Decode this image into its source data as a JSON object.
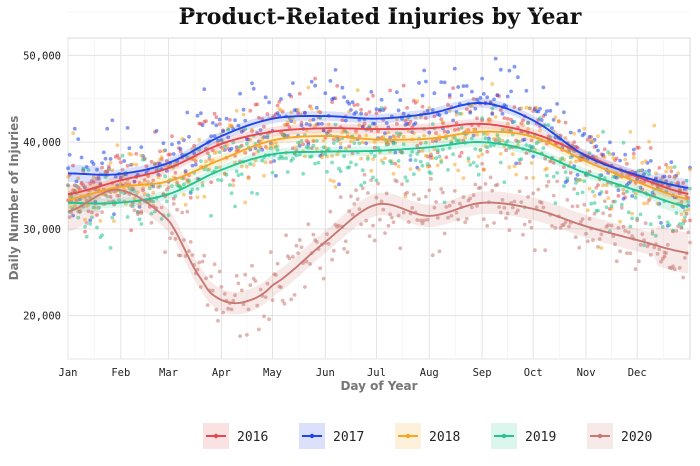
{
  "chart_data": {
    "type": "scatter",
    "title": "Product-Related Injuries by Year",
    "xlabel": "Day of Year",
    "ylabel": "Daily Number of Injuries",
    "x_ticks": [
      "Jan",
      "Feb",
      "Mar",
      "Apr",
      "May",
      "Jun",
      "Jul",
      "Aug",
      "Sep",
      "Oct",
      "Nov",
      "Dec"
    ],
    "x_tick_days": [
      1,
      32,
      60,
      91,
      121,
      152,
      182,
      213,
      244,
      274,
      305,
      335
    ],
    "xlim": [
      1,
      366
    ],
    "ylim": [
      15000,
      52000
    ],
    "y_ticks": [
      20000,
      30000,
      40000,
      50000
    ],
    "y_tick_labels": [
      "20,000",
      "30,000",
      "40,000",
      "50,000"
    ],
    "grid": true,
    "legend_position": "bottom",
    "series": [
      {
        "name": "2016",
        "color": "#e5484d",
        "smooth": [
          [
            1,
            34000
          ],
          [
            30,
            35500
          ],
          [
            60,
            37000
          ],
          [
            91,
            39800
          ],
          [
            121,
            41200
          ],
          [
            152,
            41600
          ],
          [
            182,
            41500
          ],
          [
            213,
            41600
          ],
          [
            244,
            42100
          ],
          [
            274,
            41000
          ],
          [
            305,
            38500
          ],
          [
            335,
            36000
          ],
          [
            366,
            34000
          ]
        ]
      },
      {
        "name": "2017",
        "color": "#2146e8",
        "smooth": [
          [
            1,
            36400
          ],
          [
            30,
            36300
          ],
          [
            60,
            37600
          ],
          [
            91,
            40700
          ],
          [
            121,
            42700
          ],
          [
            152,
            43000
          ],
          [
            182,
            42700
          ],
          [
            213,
            43300
          ],
          [
            244,
            44500
          ],
          [
            274,
            42500
          ],
          [
            305,
            38400
          ],
          [
            335,
            36200
          ],
          [
            366,
            34700
          ]
        ]
      },
      {
        "name": "2018",
        "color": "#f5a623",
        "smooth": [
          [
            1,
            33400
          ],
          [
            30,
            34800
          ],
          [
            60,
            35500
          ],
          [
            91,
            38000
          ],
          [
            121,
            40200
          ],
          [
            152,
            40700
          ],
          [
            182,
            40300
          ],
          [
            213,
            40400
          ],
          [
            244,
            41200
          ],
          [
            274,
            40600
          ],
          [
            305,
            37800
          ],
          [
            335,
            35400
          ],
          [
            366,
            33400
          ]
        ]
      },
      {
        "name": "2019",
        "color": "#23c48e",
        "smooth": [
          [
            1,
            33000
          ],
          [
            30,
            33000
          ],
          [
            60,
            34000
          ],
          [
            91,
            36800
          ],
          [
            121,
            38600
          ],
          [
            152,
            38900
          ],
          [
            182,
            39000
          ],
          [
            213,
            39400
          ],
          [
            244,
            40000
          ],
          [
            274,
            38900
          ],
          [
            305,
            36400
          ],
          [
            335,
            34400
          ],
          [
            366,
            32500
          ]
        ]
      },
      {
        "name": "2020",
        "color": "#c87872",
        "smooth": [
          [
            1,
            32000
          ],
          [
            30,
            34500
          ],
          [
            60,
            31000
          ],
          [
            80,
            24000
          ],
          [
            91,
            21800
          ],
          [
            105,
            21600
          ],
          [
            121,
            23500
          ],
          [
            152,
            28500
          ],
          [
            182,
            32800
          ],
          [
            213,
            31500
          ],
          [
            244,
            33000
          ],
          [
            274,
            32300
          ],
          [
            305,
            30300
          ],
          [
            335,
            28700
          ],
          [
            366,
            27200
          ]
        ]
      }
    ]
  }
}
